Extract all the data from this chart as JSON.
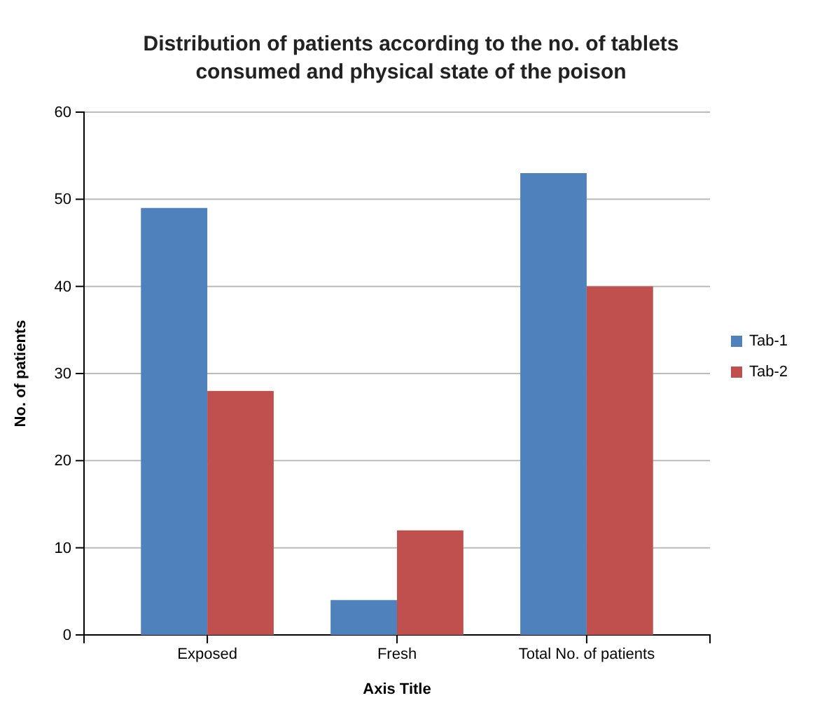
{
  "chart_data": {
    "type": "bar",
    "title": "Distribution of patients according to the no. of tablets consumed and physical state of the poison",
    "xlabel": "Axis Title",
    "ylabel": "No. of patients",
    "categories": [
      "Exposed",
      "Fresh",
      "Total No. of patients"
    ],
    "series": [
      {
        "name": "Tab-1",
        "color": "#4f81bd",
        "values": [
          49,
          4,
          53
        ]
      },
      {
        "name": "Tab-2",
        "color": "#c0504d",
        "values": [
          28,
          12,
          40
        ]
      }
    ],
    "ylim": [
      0,
      60
    ],
    "yticks": [
      0,
      10,
      20,
      30,
      40,
      50,
      60
    ],
    "grid": "y",
    "legend": "right"
  }
}
